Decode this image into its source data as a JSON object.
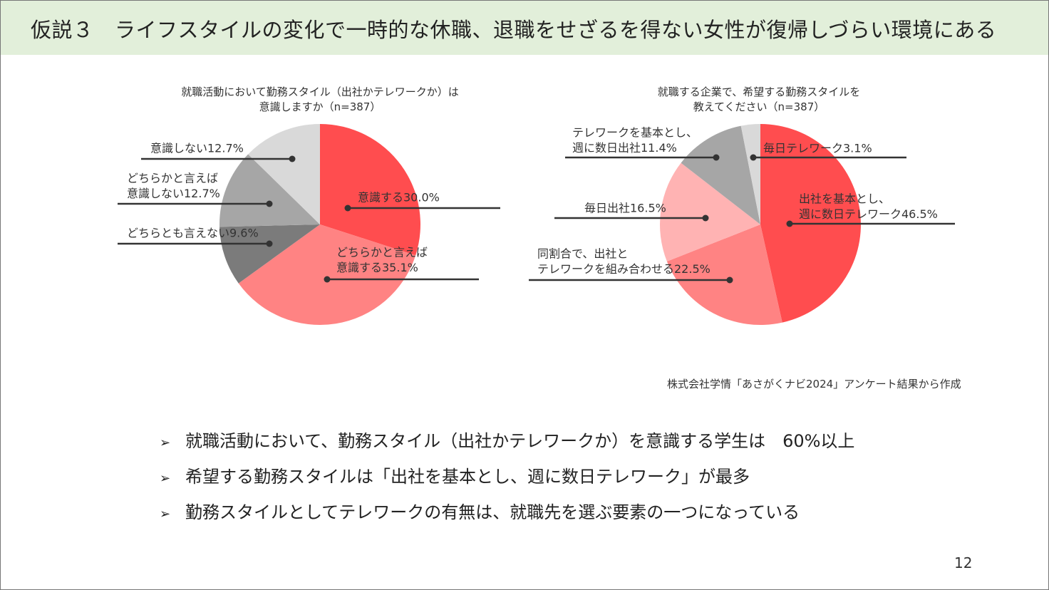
{
  "slide": {
    "title": "仮説３　ライフスタイルの変化で一時的な休職、退職をせざるを得ない女性が復帰しづらい環境にある",
    "source": "株式会社学情「あさがくナビ2024」アンケート結果から作成",
    "bullet_marker": "➢",
    "bullets": [
      "就職活動において、勤務スタイル（出社かテレワークか）を意識する学生は　60%以上",
      "希望する勤務スタイルは「出社を基本とし、週に数日テレワーク」が最多",
      "勤務スタイルとしてテレワークの有無は、就職先を選ぶ要素の一つになっている"
    ],
    "page_number": "12"
  },
  "chart_data": [
    {
      "type": "pie",
      "title_lines": [
        "就職活動において勤務スタイル（出社かテレワークか）は",
        "意識しますか（n=387）"
      ],
      "slices": [
        {
          "label_lines": [
            "意識する30.0%"
          ],
          "value": 30.0,
          "color": "#ff4d4f"
        },
        {
          "label_lines": [
            "どちらかと言えば",
            "意識する35.1%"
          ],
          "value": 35.1,
          "color": "#ff8383"
        },
        {
          "label_lines": [
            "どちらとも言えない9.6%"
          ],
          "value": 9.6,
          "color": "#7b7b7b"
        },
        {
          "label_lines": [
            "どちらかと言えば",
            "意識しない12.7%"
          ],
          "value": 12.7,
          "color": "#a6a6a6"
        },
        {
          "label_lines": [
            "意識しない12.7%"
          ],
          "value": 12.7,
          "color": "#d9d9d9"
        }
      ]
    },
    {
      "type": "pie",
      "title_lines": [
        "就職する企業で、希望する勤務スタイルを",
        "教えてください（n=387）"
      ],
      "slices": [
        {
          "label_lines": [
            "出社を基本とし、",
            "週に数日テレワーク46.5%"
          ],
          "value": 46.5,
          "color": "#ff4d4f"
        },
        {
          "label_lines": [
            "同割合で、出社と",
            "テレワークを組み合わせる22.5%"
          ],
          "value": 22.5,
          "color": "#ff8383"
        },
        {
          "label_lines": [
            "毎日出社16.5%"
          ],
          "value": 16.5,
          "color": "#ffb3b3"
        },
        {
          "label_lines": [
            "テレワークを基本とし、",
            "週に数日出社11.4%"
          ],
          "value": 11.4,
          "color": "#a6a6a6"
        },
        {
          "label_lines": [
            "毎日テレワーク3.1%"
          ],
          "value": 3.1,
          "color": "#d9d9d9"
        }
      ]
    }
  ]
}
